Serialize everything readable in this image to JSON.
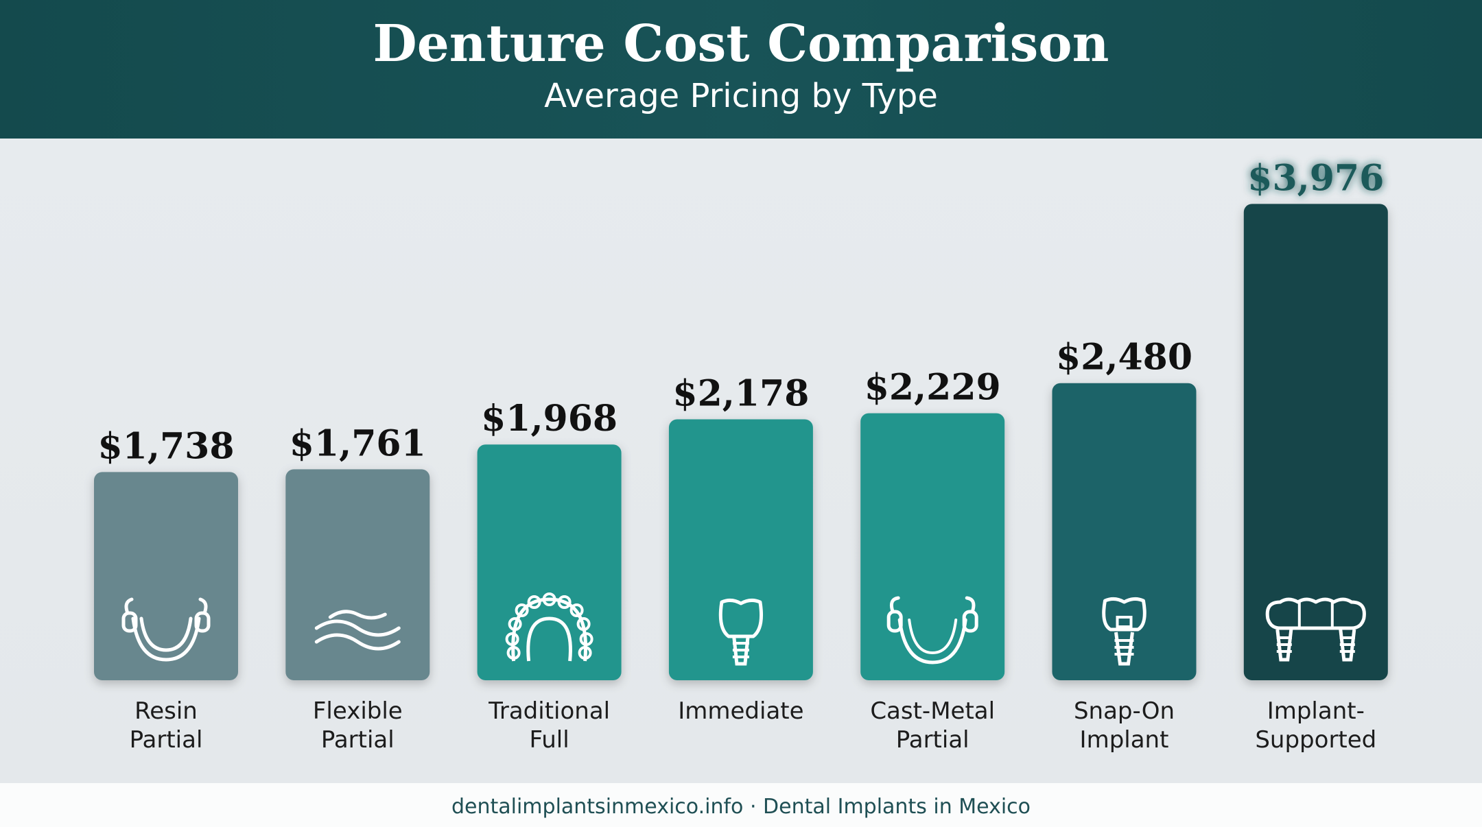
{
  "header": {
    "title": "Denture Cost Comparison",
    "subtitle": "Average Pricing by Type"
  },
  "footer": {
    "text": "dentalimplantsinmexico.info · Dental Implants in Mexico"
  },
  "chart_data": {
    "type": "bar",
    "title": "Denture Cost Comparison",
    "subtitle": "Average Pricing by Type",
    "categories": [
      [
        "Resin",
        "Partial"
      ],
      [
        "Flexible",
        "Partial"
      ],
      [
        "Traditional",
        "Full"
      ],
      [
        "Immediate"
      ],
      [
        "Cast-Metal",
        "Partial"
      ],
      [
        "Snap-On",
        "Implant"
      ],
      [
        "Implant-",
        "Supported"
      ]
    ],
    "values": [
      1738,
      1761,
      1968,
      2178,
      2229,
      2480,
      3976
    ],
    "value_labels": [
      "$1,738",
      "$1,761",
      "$1,968",
      "$2,178",
      "$2,229",
      "$2,480",
      "$3,976"
    ],
    "icons": [
      "partial-clasp-icon",
      "flexible-wave-icon",
      "full-arch-icon",
      "single-tooth-icon",
      "cast-metal-partial-icon",
      "snap-on-implant-icon",
      "implant-bridge-icon"
    ],
    "colors": [
      "#67878e",
      "#67878e",
      "#24958d",
      "#24958d",
      "#24958d",
      "#1f6467",
      "#134548"
    ],
    "highlight_label_color": "#1a5a5a",
    "default_label_color": "#111111",
    "grid": false,
    "legend": "none"
  }
}
